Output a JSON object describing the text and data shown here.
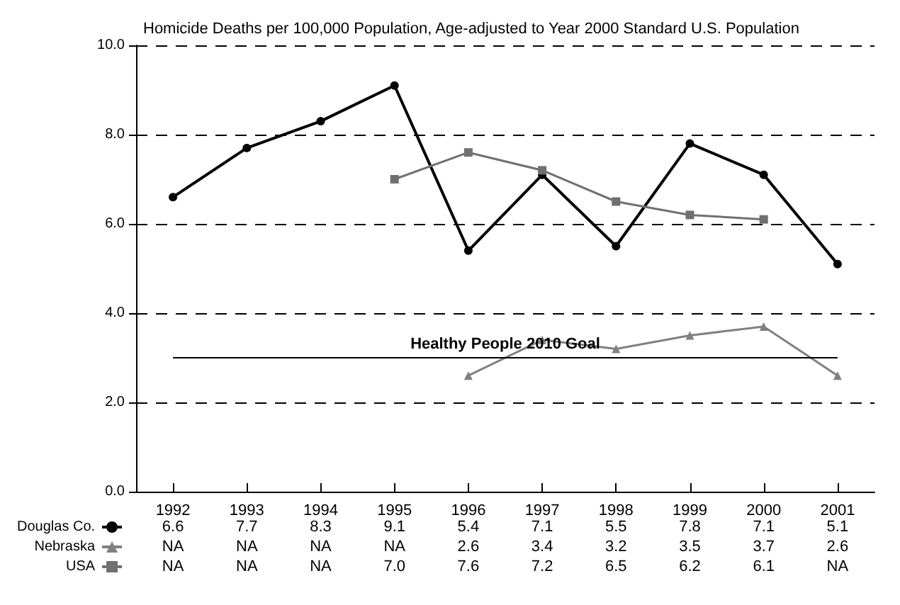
{
  "chart_data": {
    "type": "line",
    "title": "Homicide Deaths per 100,000 Population, Age-adjusted to Year 2000 Standard U.S. Population",
    "categories": [
      "1992",
      "1993",
      "1994",
      "1995",
      "1996",
      "1997",
      "1998",
      "1999",
      "2000",
      "2001"
    ],
    "series": [
      {
        "name": "Douglas Co.",
        "color": "#000000",
        "marker": "circle",
        "values": [
          6.6,
          7.7,
          8.3,
          9.1,
          5.4,
          7.1,
          5.5,
          7.8,
          7.1,
          5.1
        ],
        "value_labels": [
          "6.6",
          "7.7",
          "8.3",
          "9.1",
          "5.4",
          "7.1",
          "5.5",
          "7.8",
          "7.1",
          "5.1"
        ]
      },
      {
        "name": "Nebraska",
        "color": "#808080",
        "marker": "triangle",
        "values": [
          null,
          null,
          null,
          null,
          2.6,
          3.4,
          3.2,
          3.5,
          3.7,
          2.6
        ],
        "value_labels": [
          "NA",
          "NA",
          "NA",
          "NA",
          "2.6",
          "3.4",
          "3.2",
          "3.5",
          "3.7",
          "2.6"
        ]
      },
      {
        "name": "USA",
        "color": "#707070",
        "marker": "square",
        "values": [
          null,
          null,
          null,
          7.0,
          7.6,
          7.2,
          6.5,
          6.2,
          6.1,
          null
        ],
        "value_labels": [
          "NA",
          "NA",
          "NA",
          "7.0",
          "7.6",
          "7.2",
          "6.5",
          "6.2",
          "6.1",
          "NA"
        ]
      }
    ],
    "ylim": [
      0,
      10
    ],
    "yticks": [
      {
        "value": 0,
        "label": "0.0"
      },
      {
        "value": 2,
        "label": "2.0"
      },
      {
        "value": 4,
        "label": "4.0"
      },
      {
        "value": 6,
        "label": "6.0"
      },
      {
        "value": 8,
        "label": "8.0"
      },
      {
        "value": 10,
        "label": "10.0"
      }
    ],
    "grid": "y",
    "line_style": "solid",
    "legend": "bottom left",
    "ref_lines": [
      {
        "axis": "y",
        "value": 3,
        "label": "Healthy People 2010 Goal",
        "color": "#000000"
      }
    ]
  }
}
